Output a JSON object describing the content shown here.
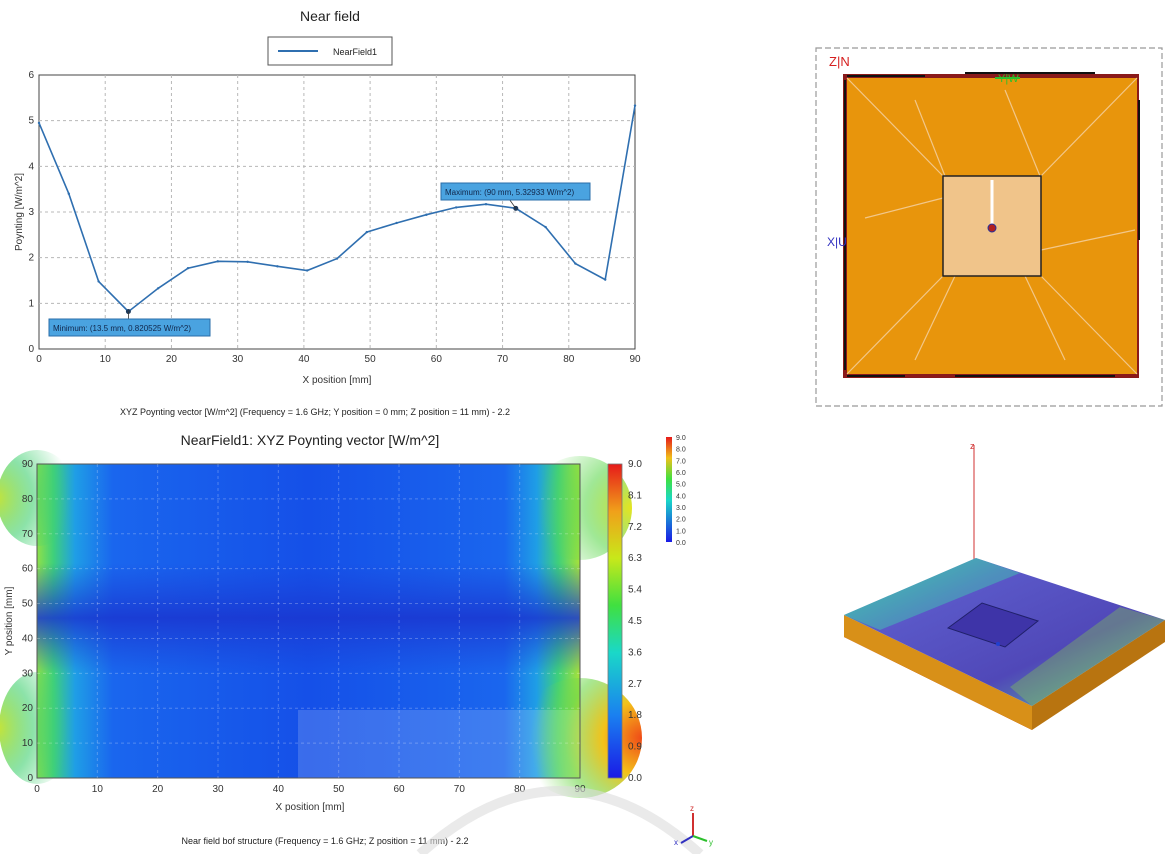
{
  "top_chart": {
    "title": "Near field",
    "xlabel": "X position [mm]",
    "ylabel": "Poynting [W/m^2]",
    "caption": "XYZ Poynting vector [W/m^2] (Frequency = 1.6 GHz; Y position = 0 mm; Z position = 11 mm) - 2.2",
    "min_label": "Minimum: (13.5 mm, 0.820525 W/m^2)",
    "max_label": "Maximum: (90 mm, 5.32933 W/m^2)"
  },
  "bottom_chart": {
    "title": "NearField1: XYZ Poynting vector [W/m^2]",
    "xlabel": "X position [mm]",
    "ylabel": "Y position [mm]",
    "caption": "Near field bof structure (Frequency = 1.6 GHz; Z position = 11 mm) - 2.2"
  },
  "view_top": {
    "label_zn": "Z|N",
    "label_xu": "X|U",
    "label_green": "Y|W"
  },
  "view_bottom": {
    "axis_z": "z",
    "mini_legend": [
      "9.0",
      "8.0",
      "7.0",
      "6.0",
      "5.0",
      "4.0",
      "3.0",
      "2.0",
      "1.0",
      "0.0"
    ]
  },
  "triad": {
    "z": "z",
    "x": "x",
    "y": "y"
  },
  "colors": {
    "line": "#2f6fb0",
    "plate": "#e8950c",
    "plate_edge": "#8a1a1a",
    "annot_bg": "#4aa3e0"
  },
  "chart_data": [
    {
      "type": "line",
      "title": "Near field",
      "xlabel": "X position [mm]",
      "ylabel": "Poynting [W/m^2]",
      "xlim": [
        0,
        90
      ],
      "ylim": [
        0,
        6
      ],
      "xticks": [
        0,
        10,
        20,
        30,
        40,
        50,
        60,
        70,
        80,
        90
      ],
      "yticks": [
        0,
        1,
        2,
        3,
        4,
        5,
        6
      ],
      "grid": true,
      "legend_position": "top-center",
      "series": [
        {
          "name": "NearField1",
          "x": [
            0,
            4.5,
            9,
            13.5,
            18,
            22.5,
            27,
            31.5,
            36,
            40.5,
            45,
            49.5,
            54,
            58.5,
            63,
            67.5,
            72,
            76.5,
            81,
            85.5,
            90
          ],
          "y": [
            4.95,
            3.4,
            1.48,
            0.82,
            1.33,
            1.77,
            1.92,
            1.91,
            1.81,
            1.72,
            1.98,
            2.56,
            2.76,
            2.94,
            3.1,
            3.17,
            3.08,
            2.67,
            1.87,
            1.52,
            5.33
          ]
        }
      ],
      "annotations": [
        {
          "label": "Minimum: (13.5 mm, 0.820525 W/m^2)",
          "x": 13.5,
          "y": 0.820525
        },
        {
          "label": "Maximum: (90 mm, 5.32933 W/m^2)",
          "x": 72,
          "y": 3.08
        }
      ]
    },
    {
      "type": "heatmap",
      "title": "NearField1: XYZ Poynting vector [W/m^2]",
      "xlabel": "X position [mm]",
      "ylabel": "Y position [mm]",
      "xlim": [
        0,
        90
      ],
      "ylim": [
        0,
        90
      ],
      "xticks": [
        0,
        10,
        20,
        30,
        40,
        50,
        60,
        70,
        80,
        90
      ],
      "yticks": [
        0,
        10,
        20,
        30,
        40,
        50,
        60,
        70,
        80,
        90
      ],
      "colorbar": {
        "min": 0,
        "max": 9,
        "ticks": [
          "9.0",
          "8.1",
          "7.2",
          "6.3",
          "5.4",
          "4.5",
          "3.6",
          "2.7",
          "1.8",
          "0.9",
          "0.0"
        ]
      }
    }
  ]
}
